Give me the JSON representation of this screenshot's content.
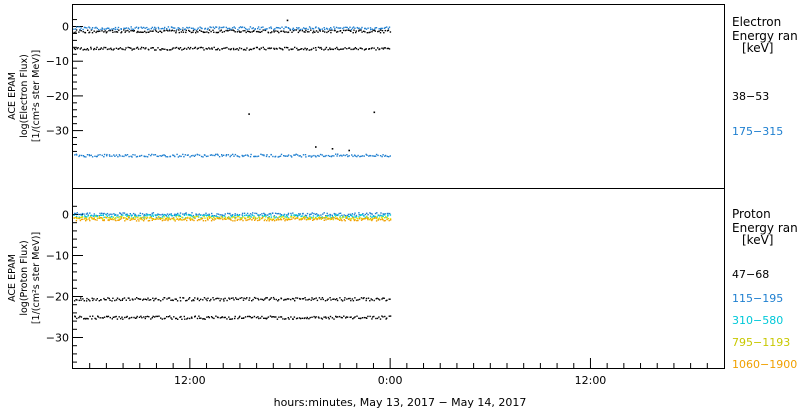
{
  "chart_data": [
    {
      "type": "scatter",
      "panel": "top",
      "ylabel_lines": [
        "ACE EPAM",
        "log(Electron Flux)",
        "[1/(cm²s ster MeV)]"
      ],
      "yticks": [
        0,
        -10,
        -20,
        -30
      ],
      "ytick_labels": [
        "0",
        "−10",
        "−20",
        "−30"
      ],
      "ylim": [
        -37,
        3
      ],
      "legend_title_lines": [
        "Electron",
        "Energy ran",
        "[keV]"
      ],
      "series": [
        {
          "name": "38−53",
          "color": "#000000",
          "typical": [
            -6.2,
            -1.2
          ],
          "outliers": [
            [
              10.5,
              -25
            ],
            [
              18.0,
              -24.5
            ],
            [
              14.5,
              -34.5
            ],
            [
              15.5,
              -35
            ],
            [
              16.5,
              -35.5
            ],
            [
              12.8,
              2
            ]
          ]
        },
        {
          "name": "175−315",
          "color": "#1e7fd0",
          "typical": [
            -37,
            -0.3
          ],
          "outliers": []
        }
      ]
    },
    {
      "type": "scatter",
      "panel": "bottom",
      "ylabel_lines": [
        "ACE EPAM",
        "log(Proton Flux)",
        "[1/(cm²s ster MeV)]"
      ],
      "yticks": [
        0,
        -10,
        -20,
        -30
      ],
      "ytick_labels": [
        "0",
        "−10",
        "−20",
        "−30"
      ],
      "ylim": [
        -37,
        3
      ],
      "legend_title_lines": [
        "Proton",
        "Energy ran",
        "[keV]"
      ],
      "series": [
        {
          "name": "47−68",
          "color": "#000000",
          "typical": [
            -20.5,
            -25
          ],
          "outliers": []
        },
        {
          "name": "115−195",
          "color": "#1e7fd0",
          "typical": [
            0.2
          ],
          "outliers": []
        },
        {
          "name": "310−580",
          "color": "#00c8d8",
          "typical": [
            -0.3
          ],
          "outliers": []
        },
        {
          "name": "795−1193",
          "color": "#e0e000",
          "typical": [
            -0.7
          ],
          "outliers": []
        },
        {
          "name": "1060−1900",
          "color": "#f0a000",
          "typical": [
            -1.0
          ],
          "outliers": []
        }
      ]
    }
  ],
  "x_axis": {
    "start_time": "May 13, 2017 05:00",
    "end_time": "May 14, 2017 20:00",
    "data_end": "May 14, 2017 00:00",
    "tick_labels": [
      "12:00",
      "0:00",
      "12:00"
    ],
    "xlabel": "hours:minutes, May 13, 2017 − May 14, 2017"
  }
}
